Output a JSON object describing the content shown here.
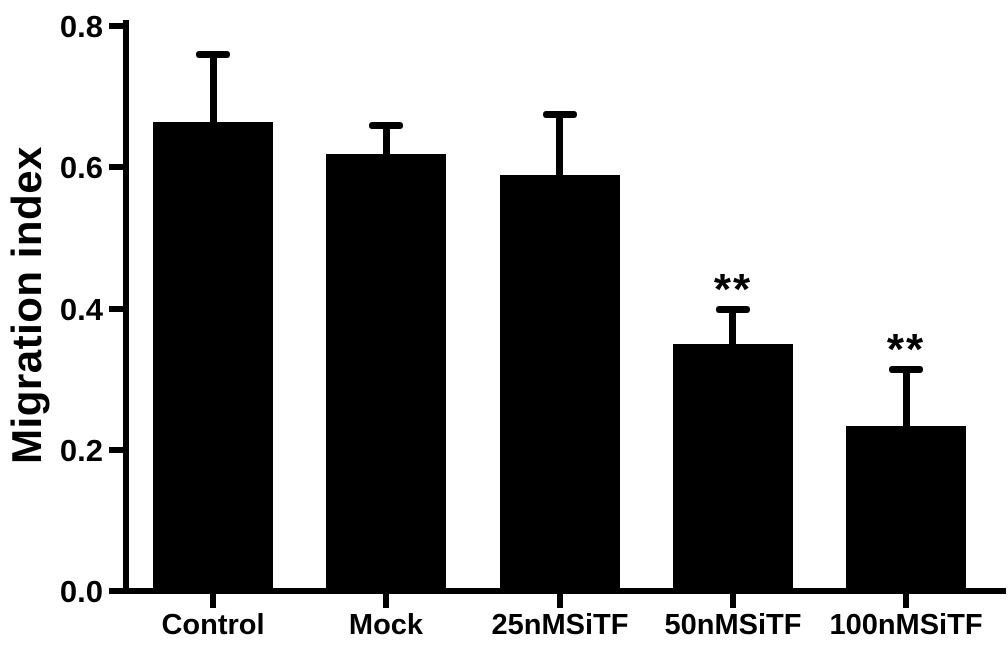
{
  "chart_data": {
    "type": "bar",
    "title": "",
    "xlabel": "",
    "ylabel": "Migration index",
    "categories": [
      "Control",
      "Mock",
      "25nMSiTF",
      "50nMSiTF",
      "100nMSiTF"
    ],
    "values": [
      0.66,
      0.615,
      0.585,
      0.345,
      0.23
    ],
    "errors": [
      0.1,
      0.045,
      0.09,
      0.055,
      0.085
    ],
    "significance": [
      "",
      "",
      "",
      "**",
      "**"
    ],
    "ylim": [
      0.0,
      0.8
    ],
    "yticks": [
      0.0,
      0.2,
      0.4,
      0.6,
      0.8
    ],
    "ytick_labels": [
      "0.0",
      "0.2",
      "0.4",
      "0.6",
      "0.8"
    ],
    "error_bar_style": "upper-only-with-cap",
    "grid": false,
    "legend": null,
    "bar_color": "#000000",
    "axis_color": "#000000",
    "background_color": "#ffffff"
  }
}
